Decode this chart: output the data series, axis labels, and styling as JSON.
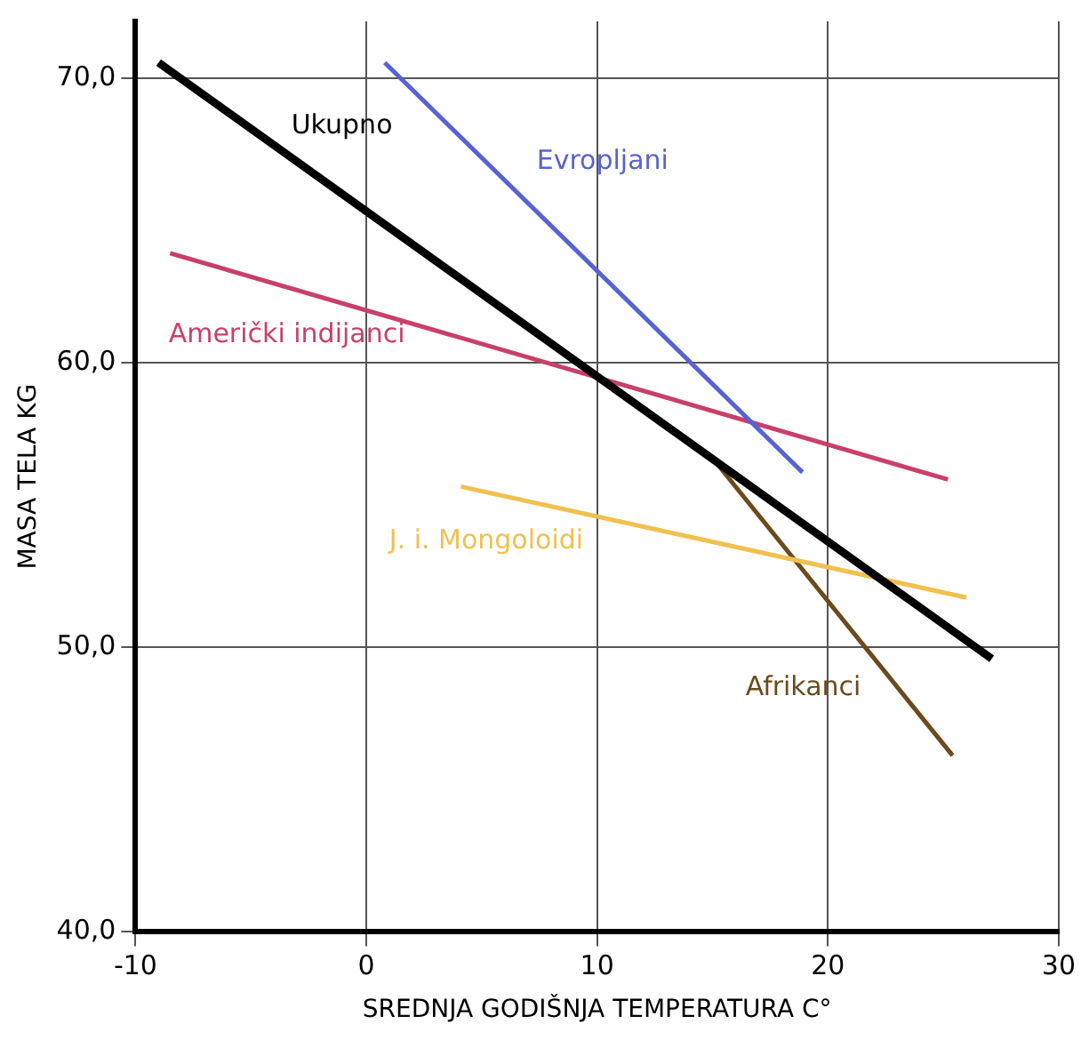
{
  "chart_data": {
    "type": "line",
    "xlabel": "SREDNJA GODIŠNJA TEMPERATURA C°",
    "ylabel": "MASA TELA KG",
    "xlim": [
      -10,
      30
    ],
    "xticks": [
      -10,
      0,
      10,
      20,
      30
    ],
    "ylim": [
      40,
      72
    ],
    "yticks": [
      {
        "value": 40,
        "label": "40,0"
      },
      {
        "value": 50,
        "label": "50,0"
      },
      {
        "value": 60,
        "label": "60,0"
      },
      {
        "value": 70,
        "label": "70,0"
      }
    ],
    "grid": true,
    "legend": false,
    "marker": "none",
    "line_style": "solid",
    "series": [
      {
        "name": "Ukupno",
        "color": "#000000",
        "x": [
          -9.0,
          27.1
        ],
        "values": [
          70.55,
          49.6
        ]
      },
      {
        "name": "Evropljani",
        "color": "#5763d0",
        "x": [
          0.8,
          18.9
        ],
        "values": [
          70.55,
          56.15
        ]
      },
      {
        "name": "Američki indijanci",
        "color": "#c8406a",
        "x": [
          -8.5,
          25.2
        ],
        "values": [
          63.85,
          55.9
        ]
      },
      {
        "name": "J. i. Mongoloidi",
        "color": "#f0c050",
        "x": [
          4.1,
          26.0
        ],
        "values": [
          55.65,
          51.75
        ]
      },
      {
        "name": "Afrikanci",
        "color": "#6b4a1e",
        "x": [
          15.2,
          25.4
        ],
        "values": [
          56.45,
          46.2
        ]
      }
    ]
  }
}
